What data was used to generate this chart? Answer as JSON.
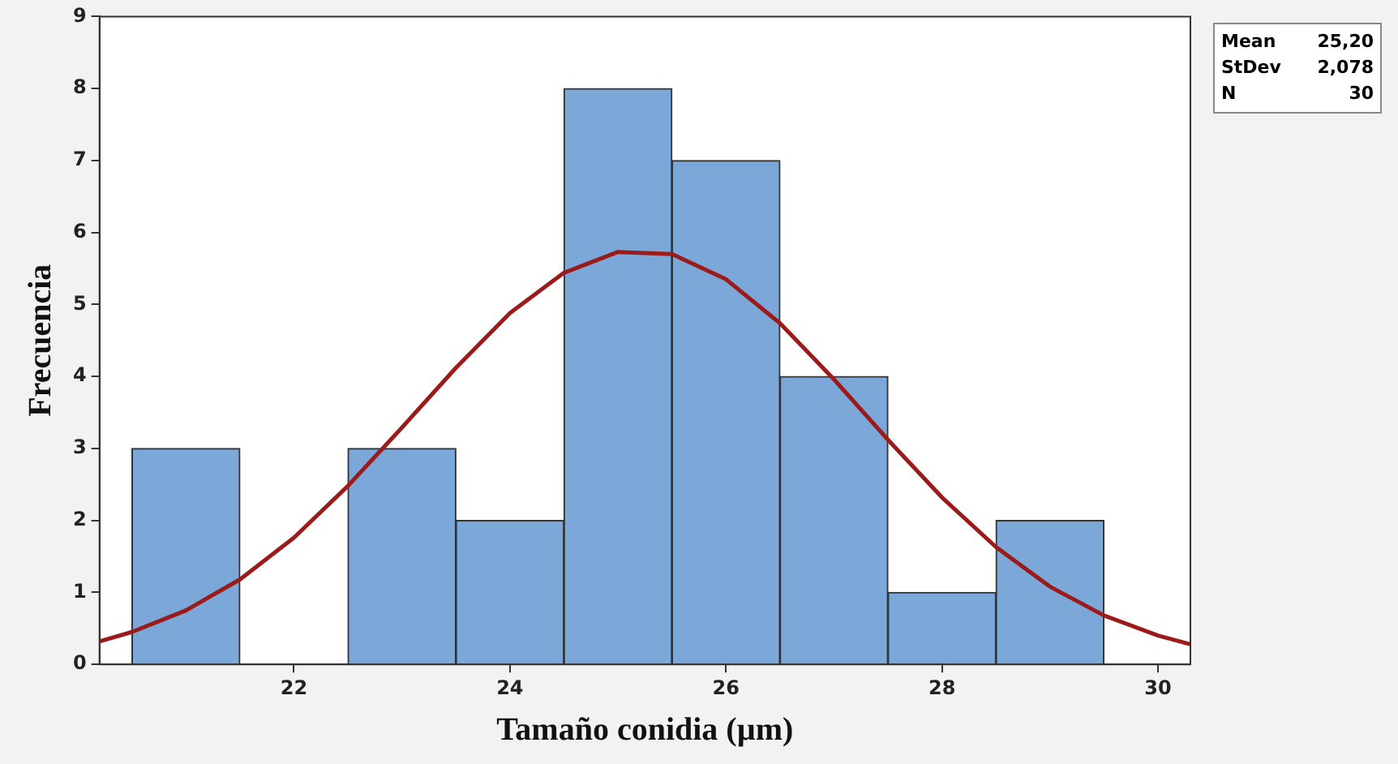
{
  "chart_data": {
    "type": "histogram",
    "xlabel": "Tamaño conidia (µm)",
    "ylabel": "Frecuencia",
    "bins": [
      20.5,
      21.5,
      22.5,
      23.5,
      24.5,
      25.5,
      26.5,
      27.5,
      28.5,
      29.5
    ],
    "values": [
      3,
      0,
      3,
      2,
      8,
      7,
      4,
      1,
      2
    ],
    "color": "#7ba7d9",
    "series": [
      {
        "type": "line",
        "color": "#9b1b1b",
        "x": [
          20.2,
          20.5,
          21,
          21.5,
          22,
          22.5,
          23,
          23.5,
          24,
          24.5,
          25,
          25.5,
          26,
          26.5,
          27,
          27.5,
          28,
          28.5,
          29,
          29.5,
          30,
          30.3
        ],
        "values": [
          0.32,
          0.45,
          0.75,
          1.18,
          1.76,
          2.48,
          3.29,
          4.12,
          4.88,
          5.44,
          5.73,
          5.7,
          5.35,
          4.74,
          3.96,
          3.12,
          2.32,
          1.63,
          1.08,
          0.68,
          0.4,
          0.28
        ]
      }
    ],
    "xlim": [
      20.2,
      30.3
    ],
    "xticks": [
      22,
      24,
      26,
      28,
      30
    ],
    "ylim": [
      0,
      9
    ],
    "yticks": [
      0,
      1,
      2,
      3,
      4,
      5,
      6,
      7,
      8,
      9
    ],
    "grid": false,
    "legend": false,
    "annotations": [
      "Mean 25,20",
      "StDev 2,078",
      "N 30"
    ]
  }
}
